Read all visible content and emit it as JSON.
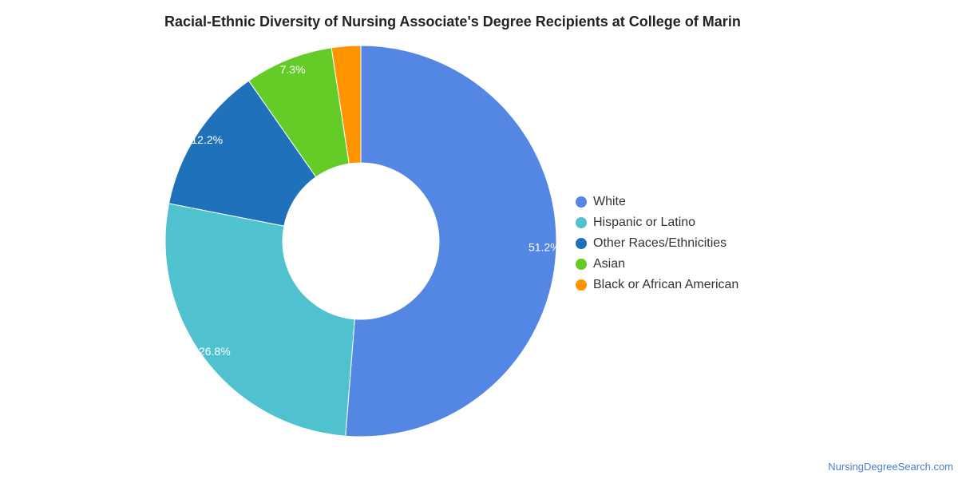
{
  "chart_data": {
    "type": "pie",
    "title": "Racial-Ethnic Diversity of Nursing Associate's Degree Recipients at College of Marin",
    "donut": true,
    "legend_position": "right",
    "categories": [
      "White",
      "Hispanic or Latino",
      "Other Races/Ethnicities",
      "Asian",
      "Black or African American"
    ],
    "values": [
      51.2,
      26.8,
      12.2,
      7.3,
      2.4
    ],
    "data_labels": [
      "51.2%",
      "26.8%",
      "12.2%",
      "7.3%",
      ""
    ],
    "colors": [
      "#5486e3",
      "#4fc1cf",
      "#1f72b9",
      "#63cc27",
      "#ff9300"
    ]
  },
  "watermark": "NursingDegreeSearch.com"
}
